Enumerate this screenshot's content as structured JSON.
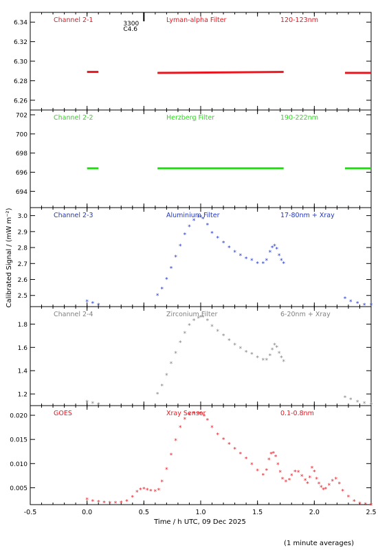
{
  "figure": {
    "ylabel": "Calibrated Signal / (mW m⁻²)",
    "xlabel": "Time / h UTC, 09 Dec 2025",
    "footnote": "(1 minute averages)",
    "annotation": {
      "top": "3300",
      "bottom": "C4.6",
      "x": 0.5
    }
  },
  "colors": {
    "red": "#e8141e",
    "green": "#22dd11",
    "blue": "#1c33cc",
    "gray": "#808080",
    "black": "#000000"
  },
  "chart_data": [
    {
      "type": "scatter",
      "channel": "Channel 2-1",
      "filter": "Lyman-alpha Filter",
      "band": "120-123nm",
      "color": "#e8141e",
      "xlim": [
        -0.5,
        2.5
      ],
      "ylim": [
        6.25,
        6.35
      ],
      "yticks": [
        "6.26",
        "6.28",
        "6.30",
        "6.32",
        "6.34"
      ],
      "ytick_values": [
        6.26,
        6.28,
        6.3,
        6.32,
        6.34
      ],
      "segments": [
        {
          "x0": 0.0,
          "x1": 0.1,
          "y0": 6.289,
          "y1": 6.289
        },
        {
          "x0": 0.62,
          "x1": 1.73,
          "y0": 6.288,
          "y1": 6.289
        },
        {
          "x0": 2.27,
          "x1": 2.5,
          "y0": 6.288,
          "y1": 6.288
        }
      ]
    },
    {
      "type": "scatter",
      "channel": "Channel 2-2",
      "filter": "Herzberg Filter",
      "band": "190-222nm",
      "color": "#22dd11",
      "xlim": [
        -0.5,
        2.5
      ],
      "ylim": [
        692.3,
        702.5
      ],
      "yticks": [
        "694",
        "696",
        "698",
        "700",
        "702"
      ],
      "ytick_values": [
        694,
        696,
        698,
        700,
        702
      ],
      "segments": [
        {
          "x0": 0.0,
          "x1": 0.1,
          "y0": 696.4,
          "y1": 696.4
        },
        {
          "x0": 0.62,
          "x1": 1.73,
          "y0": 696.4,
          "y1": 696.4
        },
        {
          "x0": 2.27,
          "x1": 2.5,
          "y0": 696.4,
          "y1": 696.4
        }
      ]
    },
    {
      "type": "scatter",
      "channel": "Channel 2-3",
      "filter": "Aluminium Filter",
      "band": "17-80nm + Xray",
      "color": "#1c33cc",
      "xlim": [
        -0.5,
        2.5
      ],
      "ylim": [
        2.43,
        3.05
      ],
      "yticks": [
        "2.5",
        "2.6",
        "2.7",
        "2.8",
        "2.9",
        "3.0"
      ],
      "ytick_values": [
        2.5,
        2.6,
        2.7,
        2.8,
        2.9,
        3.0
      ],
      "x": [
        0.0,
        0.05,
        0.1,
        0.62,
        0.66,
        0.7,
        0.74,
        0.78,
        0.82,
        0.86,
        0.9,
        0.94,
        0.98,
        1.0,
        1.02,
        1.06,
        1.1,
        1.15,
        1.2,
        1.25,
        1.3,
        1.35,
        1.4,
        1.45,
        1.5,
        1.55,
        1.58,
        1.61,
        1.63,
        1.65,
        1.67,
        1.69,
        1.71,
        1.73,
        2.27,
        2.32,
        2.38,
        2.44,
        2.5
      ],
      "y": [
        2.46,
        2.45,
        2.44,
        2.5,
        2.54,
        2.6,
        2.67,
        2.74,
        2.81,
        2.88,
        2.93,
        2.97,
        2.99,
        2.99,
        2.98,
        2.94,
        2.89,
        2.86,
        2.83,
        2.8,
        2.77,
        2.75,
        2.73,
        2.72,
        2.7,
        2.7,
        2.72,
        2.77,
        2.8,
        2.81,
        2.79,
        2.75,
        2.72,
        2.7,
        2.48,
        2.46,
        2.45,
        2.44,
        2.44
      ]
    },
    {
      "type": "scatter",
      "channel": "Channel 2-4",
      "filter": "Zirconium Filter",
      "band": "6-20nm + Xray",
      "color": "#808080",
      "xlim": [
        -0.5,
        2.5
      ],
      "ylim": [
        1.1,
        1.95
      ],
      "yticks": [
        "1.2",
        "1.4",
        "1.6",
        "1.8"
      ],
      "ytick_values": [
        1.2,
        1.4,
        1.6,
        1.8
      ],
      "x": [
        0.0,
        0.05,
        0.1,
        0.62,
        0.66,
        0.7,
        0.74,
        0.78,
        0.82,
        0.86,
        0.9,
        0.94,
        0.98,
        1.0,
        1.02,
        1.06,
        1.1,
        1.15,
        1.2,
        1.25,
        1.3,
        1.35,
        1.4,
        1.45,
        1.5,
        1.55,
        1.58,
        1.61,
        1.63,
        1.65,
        1.67,
        1.69,
        1.71,
        1.73,
        2.27,
        2.32,
        2.38,
        2.44,
        2.5
      ],
      "y": [
        1.13,
        1.12,
        1.11,
        1.2,
        1.27,
        1.36,
        1.46,
        1.55,
        1.64,
        1.72,
        1.79,
        1.83,
        1.85,
        1.86,
        1.86,
        1.83,
        1.78,
        1.74,
        1.7,
        1.66,
        1.62,
        1.59,
        1.56,
        1.54,
        1.51,
        1.49,
        1.49,
        1.53,
        1.58,
        1.62,
        1.6,
        1.55,
        1.51,
        1.48,
        1.17,
        1.15,
        1.13,
        1.12,
        1.11
      ]
    },
    {
      "type": "scatter",
      "channel": "GOES",
      "filter": "Xray Sensor",
      "band": "0.1-0.8nm",
      "color": "#e8141e",
      "xlim": [
        -0.5,
        2.5
      ],
      "ylim": [
        0.0015,
        0.022
      ],
      "yticks": [
        "0.005",
        "0.010",
        "0.015",
        "0.020"
      ],
      "ytick_values": [
        0.005,
        0.01,
        0.015,
        0.02
      ],
      "xticks": [
        "-0.5",
        "0.0",
        "0.5",
        "1.0",
        "1.5",
        "2.0",
        "2.5"
      ],
      "xtick_values": [
        -0.5,
        0,
        0.5,
        1.0,
        1.5,
        2.0,
        2.5
      ],
      "x": [
        0.0,
        0.05,
        0.1,
        0.15,
        0.2,
        0.25,
        0.3,
        0.35,
        0.4,
        0.44,
        0.47,
        0.5,
        0.53,
        0.56,
        0.6,
        0.63,
        0.66,
        0.7,
        0.74,
        0.78,
        0.82,
        0.86,
        0.9,
        0.94,
        0.98,
        1.0,
        1.03,
        1.06,
        1.1,
        1.15,
        1.2,
        1.25,
        1.3,
        1.35,
        1.4,
        1.45,
        1.5,
        1.55,
        1.58,
        1.6,
        1.62,
        1.64,
        1.66,
        1.68,
        1.7,
        1.72,
        1.75,
        1.78,
        1.8,
        1.83,
        1.86,
        1.89,
        1.92,
        1.94,
        1.96,
        1.98,
        2.0,
        2.02,
        2.04,
        2.06,
        2.08,
        2.1,
        2.13,
        2.16,
        2.19,
        2.22,
        2.25,
        2.3,
        2.35,
        2.4,
        2.45,
        2.5
      ],
      "y": [
        0.0025,
        0.0022,
        0.002,
        0.0019,
        0.0018,
        0.0018,
        0.0019,
        0.0022,
        0.003,
        0.0041,
        0.0046,
        0.0047,
        0.0045,
        0.0043,
        0.0042,
        0.0045,
        0.0062,
        0.0088,
        0.0118,
        0.0148,
        0.0175,
        0.0192,
        0.0201,
        0.0204,
        0.0204,
        0.0203,
        0.0198,
        0.019,
        0.0175,
        0.016,
        0.015,
        0.014,
        0.013,
        0.012,
        0.011,
        0.0098,
        0.0085,
        0.0076,
        0.0086,
        0.0108,
        0.012,
        0.0121,
        0.0114,
        0.0098,
        0.0082,
        0.0068,
        0.0062,
        0.0066,
        0.0075,
        0.0083,
        0.0082,
        0.0074,
        0.0065,
        0.0059,
        0.0071,
        0.0091,
        0.0083,
        0.0068,
        0.0058,
        0.0051,
        0.0046,
        0.0047,
        0.0055,
        0.0064,
        0.0068,
        0.0058,
        0.0043,
        0.0031,
        0.0022,
        0.0017,
        0.0015,
        0.0014
      ]
    }
  ]
}
